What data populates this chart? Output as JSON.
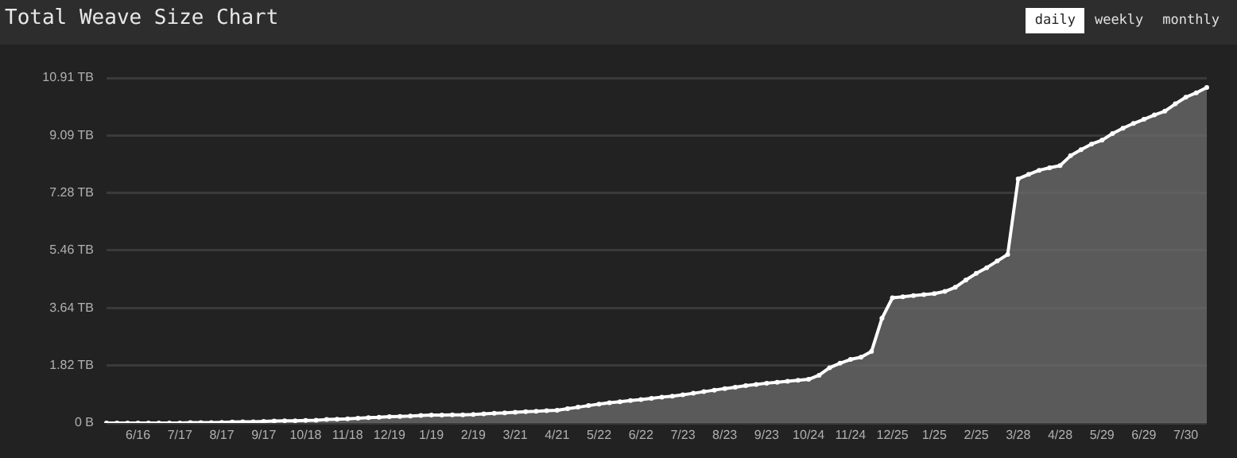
{
  "chart_data": {
    "type": "area",
    "title": "Total Weave Size Chart",
    "annotations": [
      "daily",
      "weekly",
      "monthly"
    ],
    "categories": [
      null,
      null,
      null,
      "6/16",
      null,
      null,
      null,
      "7/17",
      null,
      null,
      null,
      "8/17",
      null,
      null,
      null,
      "9/17",
      null,
      null,
      null,
      "10/18",
      null,
      null,
      null,
      "11/18",
      null,
      null,
      null,
      "12/19",
      null,
      null,
      null,
      "1/19",
      null,
      null,
      null,
      "2/19",
      null,
      null,
      null,
      "3/21",
      null,
      null,
      null,
      "4/21",
      null,
      null,
      null,
      "5/22",
      null,
      null,
      null,
      "6/22",
      null,
      null,
      null,
      "7/23",
      null,
      null,
      null,
      "8/23",
      null,
      null,
      null,
      "9/23",
      null,
      null,
      null,
      "10/24",
      null,
      null,
      null,
      "11/24",
      null,
      null,
      null,
      "12/25",
      null,
      null,
      null,
      "1/25",
      null,
      null,
      null,
      "2/25",
      null,
      null,
      null,
      "3/28",
      null,
      null,
      null,
      "4/28",
      null,
      null,
      null,
      "5/29",
      null,
      null,
      null,
      "6/29",
      null,
      null,
      null,
      "7/30",
      null,
      null
    ],
    "series": [
      {
        "color": "#ffffff",
        "values": [
          0,
          0,
          0,
          0,
          0,
          0,
          0,
          0,
          0.01,
          0.01,
          0.01,
          0.02,
          0.03,
          0.04,
          0.04,
          0.05,
          0.06,
          0.07,
          0.07,
          0.08,
          0.09,
          0.11,
          0.12,
          0.13,
          0.15,
          0.17,
          0.18,
          0.2,
          0.21,
          0.22,
          0.24,
          0.25,
          0.25,
          0.26,
          0.26,
          0.27,
          0.29,
          0.31,
          0.32,
          0.34,
          0.36,
          0.37,
          0.39,
          0.4,
          0.45,
          0.5,
          0.55,
          0.6,
          0.64,
          0.67,
          0.71,
          0.74,
          0.78,
          0.82,
          0.85,
          0.89,
          0.94,
          0.99,
          1.04,
          1.09,
          1.13,
          1.18,
          1.22,
          1.26,
          1.29,
          1.32,
          1.35,
          1.38,
          1.51,
          1.75,
          1.89,
          2.01,
          2.08,
          2.26,
          3.31,
          3.96,
          3.99,
          4.03,
          4.06,
          4.09,
          4.16,
          4.29,
          4.52,
          4.73,
          4.91,
          5.12,
          5.33,
          7.72,
          7.86,
          7.99,
          8.07,
          8.14,
          8.45,
          8.64,
          8.82,
          8.94,
          9.15,
          9.32,
          9.47,
          9.6,
          9.74,
          9.86,
          10.09,
          10.3,
          10.44,
          10.61
        ]
      }
    ],
    "ylim": [
      0,
      10.91
    ],
    "yticks": [
      {
        "value": 0,
        "label": "0 B"
      },
      {
        "value": 1.82,
        "label": "1.82 TB"
      },
      {
        "value": 3.64,
        "label": "3.64 TB"
      },
      {
        "value": 5.46,
        "label": "5.46 TB"
      },
      {
        "value": 7.28,
        "label": "7.28 TB"
      },
      {
        "value": 9.09,
        "label": "9.09 TB"
      },
      {
        "value": 10.91,
        "label": "10.91 TB"
      }
    ],
    "grid": "y",
    "legend": false,
    "marker": "circle",
    "line_style": "solid"
  }
}
